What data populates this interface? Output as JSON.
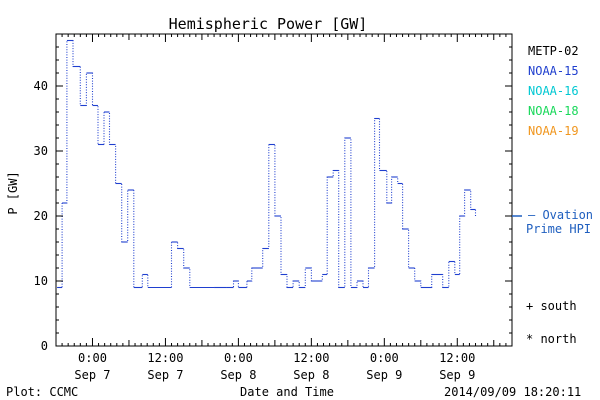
{
  "chart_data": {
    "type": "line",
    "title": "Hemispheric Power [GW]",
    "ylabel": "P [GW]",
    "xlabel": "Date and Time",
    "ylim": [
      0,
      48
    ],
    "y_ticks": [
      0,
      10,
      20,
      30,
      40
    ],
    "x_ticks": [
      {
        "t": 0,
        "time": "0:00",
        "date": "Sep 7"
      },
      {
        "t": 12,
        "time": "12:00",
        "date": "Sep 7"
      },
      {
        "t": 24,
        "time": "0:00",
        "date": "Sep 8"
      },
      {
        "t": 36,
        "time": "12:00",
        "date": "Sep 8"
      },
      {
        "t": 48,
        "time": "0:00",
        "date": "Sep 9"
      },
      {
        "t": 60,
        "time": "12:00",
        "date": "Sep 9"
      }
    ],
    "xlim": [
      -6,
      69
    ],
    "legend": [
      {
        "name": "METP-02",
        "color": "#000000"
      },
      {
        "name": "NOAA-15",
        "color": "#1f3fcf"
      },
      {
        "name": "NOAA-16",
        "color": "#00c8d2"
      },
      {
        "name": "NOAA-18",
        "color": "#18d85a"
      },
      {
        "name": "NOAA-19",
        "color": "#f0961e"
      }
    ],
    "ovation_label_1": "— Ovation",
    "ovation_label_2": "Prime HPI",
    "ovation_value": 20,
    "ovation_color": "#1f5fbf",
    "marker_south": "+ south",
    "marker_north": "* north",
    "series": [
      {
        "name": "NOAA-15",
        "color": "#1f3fcf",
        "points": [
          [
            -5.8,
            9
          ],
          [
            -5,
            22
          ],
          [
            -4.2,
            47
          ],
          [
            -3.2,
            43
          ],
          [
            -2,
            37
          ],
          [
            -1,
            42
          ],
          [
            0,
            37
          ],
          [
            0.9,
            31
          ],
          [
            1.9,
            36
          ],
          [
            2.8,
            31
          ],
          [
            3.8,
            25
          ],
          [
            4.8,
            16
          ],
          [
            5.8,
            24
          ],
          [
            6.8,
            9
          ],
          [
            8.2,
            11
          ],
          [
            9.1,
            9
          ],
          [
            13,
            16
          ],
          [
            14,
            15
          ],
          [
            15,
            12
          ],
          [
            16,
            9
          ],
          [
            20,
            9
          ],
          [
            22,
            9
          ],
          [
            23.2,
            10
          ],
          [
            24,
            9
          ],
          [
            25.4,
            10
          ],
          [
            26.2,
            12
          ],
          [
            28,
            15
          ],
          [
            29,
            31
          ],
          [
            30,
            20
          ],
          [
            31,
            11
          ],
          [
            32,
            9
          ],
          [
            33,
            10
          ],
          [
            34,
            9
          ],
          [
            35,
            12
          ],
          [
            36,
            10
          ],
          [
            37.8,
            11
          ],
          [
            38.6,
            26
          ],
          [
            39.6,
            27
          ],
          [
            40.5,
            9
          ],
          [
            41.5,
            32
          ],
          [
            42.5,
            9
          ],
          [
            43.5,
            10
          ],
          [
            44.5,
            9
          ],
          [
            45.4,
            12
          ],
          [
            46.4,
            35
          ],
          [
            47.2,
            27
          ],
          [
            48.4,
            22
          ],
          [
            49.2,
            26
          ],
          [
            50.2,
            25
          ],
          [
            51,
            18
          ],
          [
            52,
            12
          ],
          [
            53,
            10
          ],
          [
            54,
            9
          ],
          [
            55.8,
            11
          ],
          [
            57.6,
            9
          ],
          [
            58.6,
            13
          ],
          [
            59.6,
            11
          ],
          [
            60.4,
            20
          ],
          [
            61.2,
            24
          ],
          [
            62.2,
            21
          ],
          [
            63,
            20
          ]
        ]
      }
    ]
  },
  "footer": {
    "plot_credit": "Plot: CCMC",
    "timestamp": "2014/09/09 18:20:11"
  }
}
